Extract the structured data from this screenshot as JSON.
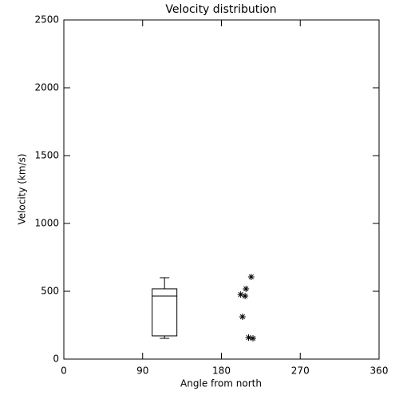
{
  "chart_data": {
    "type": "box",
    "title": "Velocity distribution",
    "x_label": "Angle from north",
    "y_label": "Velocity (km/s)",
    "xlim": [
      0,
      360
    ],
    "xticks": [
      0,
      90,
      180,
      270,
      360
    ],
    "ylim": [
      0,
      2500
    ],
    "yticks": [
      0,
      500,
      1000,
      1500,
      2000,
      2500
    ],
    "color": "#000000",
    "box": {
      "x": 115,
      "whisker_low": 153,
      "q1": 171,
      "median": 465,
      "q3": 518,
      "whisker_high": 600
    },
    "series": [
      {
        "color": "#000000",
        "x": [
          214,
          208,
          202,
          207,
          204,
          211,
          216
        ],
        "values": [
          606,
          518,
          476,
          465,
          312,
          159,
          153
        ]
      }
    ]
  }
}
